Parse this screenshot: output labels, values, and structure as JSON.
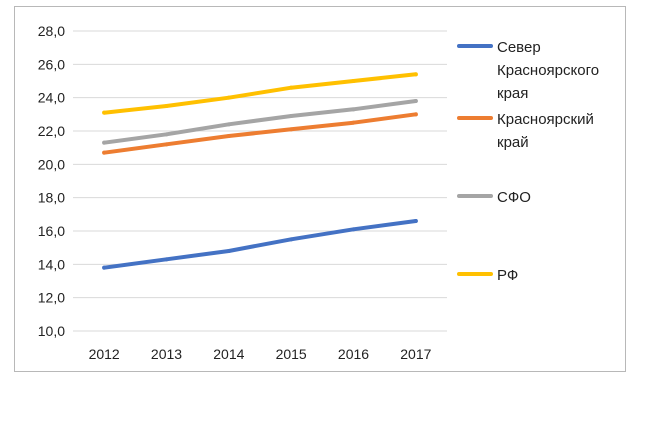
{
  "chart_data": {
    "type": "line",
    "x": [
      "2012",
      "2013",
      "2014",
      "2015",
      "2016",
      "2017"
    ],
    "ylim": [
      10,
      28
    ],
    "yticks": [
      "10,0",
      "12,0",
      "14,0",
      "16,0",
      "18,0",
      "20,0",
      "22,0",
      "24,0",
      "26,0",
      "28,0"
    ],
    "grid": "horizontal",
    "legend_placement": "right",
    "title": "",
    "xlabel": "",
    "ylabel": "",
    "series": [
      {
        "name": "Север Красноярского края",
        "legend_lines": [
          "Север",
          "Красноярского",
          "края"
        ],
        "color": "#4472C4",
        "values": [
          13.8,
          14.3,
          14.8,
          15.5,
          16.1,
          16.6
        ]
      },
      {
        "name": "Красноярский край",
        "legend_lines": [
          "Красноярский",
          "край"
        ],
        "color": "#ED7D31",
        "values": [
          20.7,
          21.2,
          21.7,
          22.1,
          22.5,
          23.0
        ]
      },
      {
        "name": "СФО",
        "legend_lines": [
          "СФО"
        ],
        "color": "#A5A5A5",
        "values": [
          21.3,
          21.8,
          22.4,
          22.9,
          23.3,
          23.8
        ]
      },
      {
        "name": "РФ",
        "legend_lines": [
          "РФ"
        ],
        "color": "#FFC000",
        "values": [
          23.1,
          23.5,
          24.0,
          24.6,
          25.0,
          25.4
        ]
      }
    ]
  }
}
